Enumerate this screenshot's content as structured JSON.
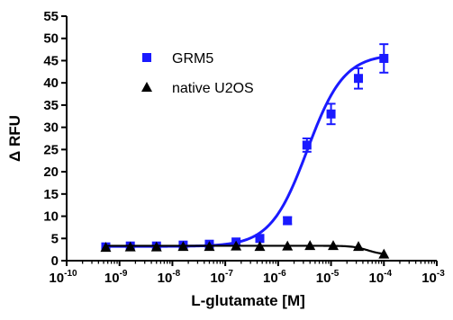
{
  "chart_data": {
    "type": "scatter",
    "xlabel": "L-glutamate [M]",
    "ylabel": "Δ RFU",
    "xscale": "log",
    "xlim": [
      1e-10,
      0.001
    ],
    "ylim": [
      0,
      55
    ],
    "x_tick_labels": [
      {
        "base": "10",
        "exp": "-10",
        "value": 1e-10
      },
      {
        "base": "10",
        "exp": "-9",
        "value": 1e-09
      },
      {
        "base": "10",
        "exp": "-8",
        "value": 1e-08
      },
      {
        "base": "10",
        "exp": "-7",
        "value": 1e-07
      },
      {
        "base": "10",
        "exp": "-6",
        "value": 1e-06
      },
      {
        "base": "10",
        "exp": "-5",
        "value": 1e-05
      },
      {
        "base": "10",
        "exp": "-4",
        "value": 0.0001
      },
      {
        "base": "10",
        "exp": "-3",
        "value": 0.001
      }
    ],
    "y_ticks": [
      0,
      5,
      10,
      15,
      20,
      25,
      30,
      35,
      40,
      45,
      50,
      55
    ],
    "legend_position": "top-left",
    "series": [
      {
        "name": "GRM5",
        "color": "#1a1aff",
        "marker": "square",
        "x": [
          5.5e-10,
          1.6e-09,
          5e-09,
          1.6e-08,
          5e-08,
          1.6e-07,
          4.5e-07,
          1.5e-06,
          3.5e-06,
          1e-05,
          3.3e-05,
          0.0001
        ],
        "y": [
          3.1,
          3.3,
          3.3,
          3.5,
          3.7,
          4.2,
          5.0,
          9.0,
          26.0,
          33.0,
          41.0,
          45.5
        ],
        "error": [
          0,
          0,
          0,
          0,
          0,
          0,
          0.5,
          0.8,
          1.5,
          2.3,
          2.3,
          3.2
        ],
        "fit": {
          "bottom": 3.2,
          "top": 46.5,
          "log_ec50": -5.45,
          "hill": 1.25
        }
      },
      {
        "name": "native U2OS",
        "color": "#000000",
        "marker": "triangle",
        "x": [
          5.5e-10,
          1.6e-09,
          5e-09,
          1.6e-08,
          5e-08,
          1.6e-07,
          4.5e-07,
          1.5e-06,
          4e-06,
          1.1e-05,
          3.3e-05,
          0.0001
        ],
        "y": [
          3.0,
          3.1,
          3.1,
          3.2,
          3.2,
          3.3,
          3.2,
          3.3,
          3.4,
          3.4,
          3.2,
          1.5
        ],
        "error": [
          0,
          0,
          0,
          0,
          0,
          0,
          0,
          0,
          0,
          0,
          0,
          0
        ],
        "fit": {
          "bottom": 1.3,
          "top": 3.35,
          "log_ec50": -4.3,
          "hill": -3.0
        }
      }
    ]
  }
}
